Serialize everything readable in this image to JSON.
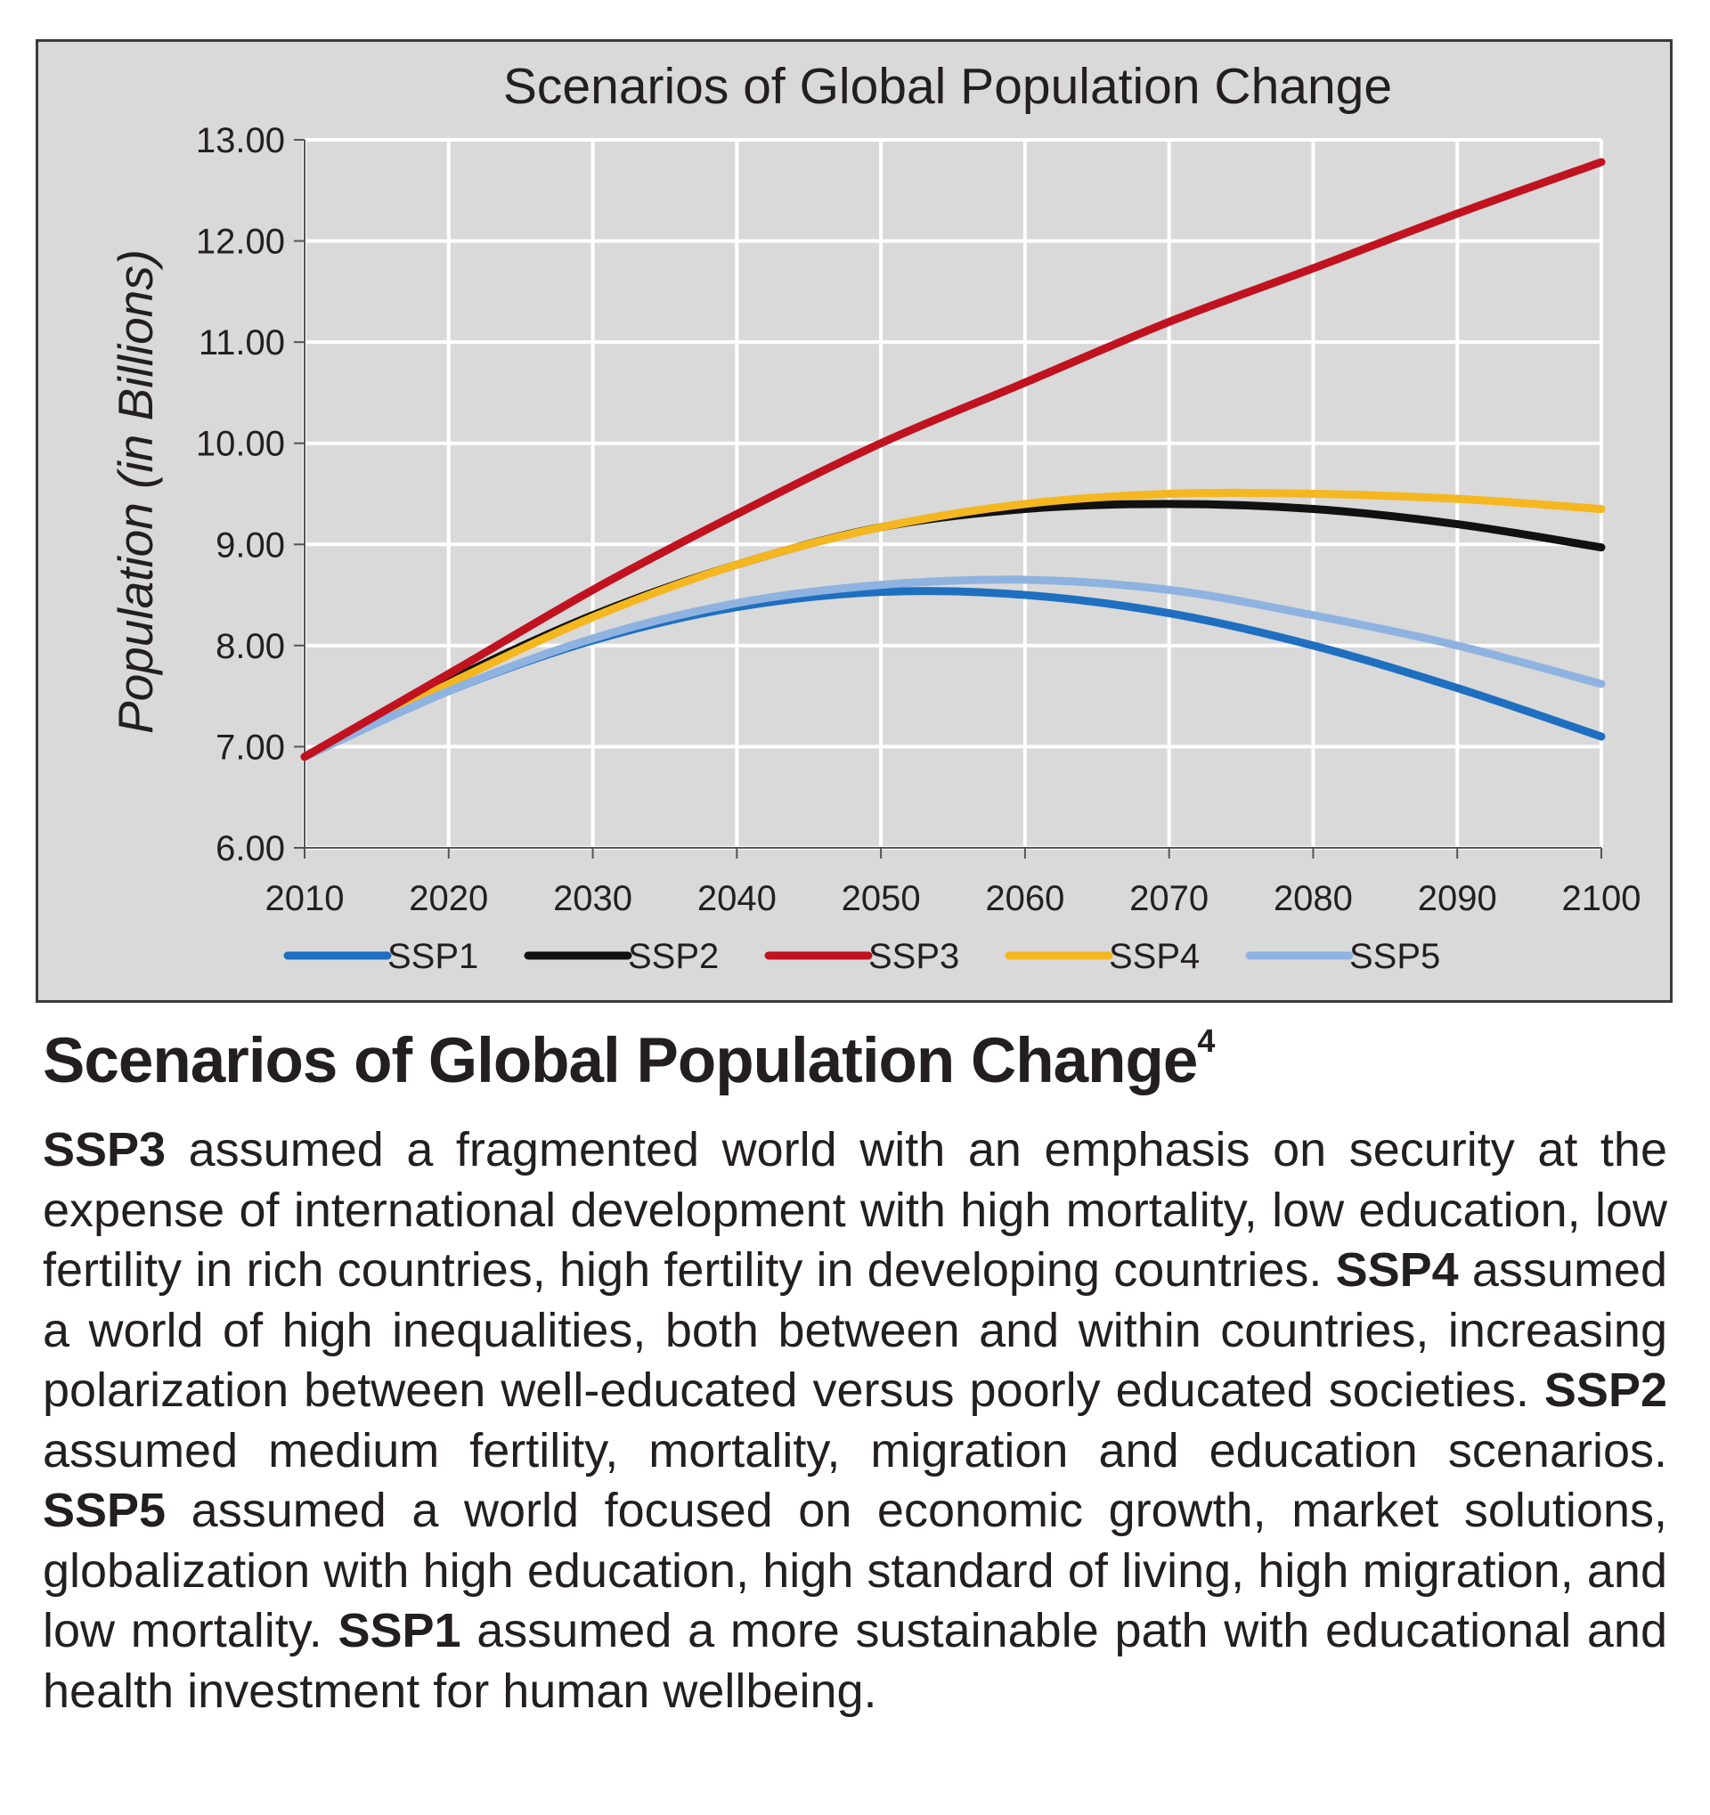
{
  "chart_data": {
    "type": "line",
    "title": "Scenarios of Global Population Change",
    "xlabel": "",
    "ylabel": "Population (in Billions)",
    "x": [
      2010,
      2020,
      2030,
      2040,
      2050,
      2060,
      2070,
      2080,
      2090,
      2100
    ],
    "xlim": [
      2010,
      2100
    ],
    "ylim": [
      6,
      13
    ],
    "ytick_labels": [
      "6.00",
      "7.00",
      "8.00",
      "9.00",
      "10.00",
      "11.00",
      "12.00",
      "13.00"
    ],
    "xtick_labels": [
      "2010",
      "2020",
      "2030",
      "2040",
      "2050",
      "2060",
      "2070",
      "2080",
      "2090",
      "2100"
    ],
    "grid": true,
    "legend_position": "bottom",
    "series": [
      {
        "name": "SSP1",
        "color": "#1f6fc1",
        "values": [
          6.9,
          7.55,
          8.05,
          8.38,
          8.53,
          8.5,
          8.32,
          8.0,
          7.58,
          7.1
        ]
      },
      {
        "name": "SSP2",
        "color": "#111111",
        "values": [
          6.9,
          7.65,
          8.3,
          8.8,
          9.17,
          9.35,
          9.4,
          9.35,
          9.2,
          8.97
        ]
      },
      {
        "name": "SSP3",
        "color": "#c1121f",
        "values": [
          6.9,
          7.72,
          8.55,
          9.3,
          10.0,
          10.6,
          11.2,
          11.73,
          12.27,
          12.78
        ]
      },
      {
        "name": "SSP4",
        "color": "#f5b71f",
        "values": [
          6.9,
          7.62,
          8.28,
          8.8,
          9.17,
          9.4,
          9.5,
          9.5,
          9.45,
          9.35
        ]
      },
      {
        "name": "SSP5",
        "color": "#8fb3e0",
        "values": [
          6.9,
          7.55,
          8.07,
          8.42,
          8.6,
          8.65,
          8.55,
          8.3,
          8.0,
          7.62
        ]
      }
    ]
  },
  "caption": {
    "title": "Scenarios of Global Population Change",
    "footnote_mark": "4",
    "segments": [
      {
        "text": "SSP3",
        "bold": true
      },
      {
        "text": " assumed a fragmented world with an emphasis on security at the expense of international development with high mortality, low education, low fertility in rich countries, high fertility in developing countries. ",
        "bold": false
      },
      {
        "text": "SSP4",
        "bold": true
      },
      {
        "text": " assumed a world of high inequalities, both between and within countries, increasing polarization between well-educated versus poorly educated societies. ",
        "bold": false
      },
      {
        "text": "SSP2",
        "bold": true
      },
      {
        "text": " assumed medium fertility, mortality, migration and education scenarios. ",
        "bold": false
      },
      {
        "text": "SSP5",
        "bold": true
      },
      {
        "text": " assumed a world focused on economic growth, market solutions, globalization with high education, high standard of living, high migration, and low mortality. ",
        "bold": false
      },
      {
        "text": "SSP1",
        "bold": true
      },
      {
        "text": " assumed a more sustainable path with educational and health investment for human wellbeing.",
        "bold": false
      }
    ]
  }
}
